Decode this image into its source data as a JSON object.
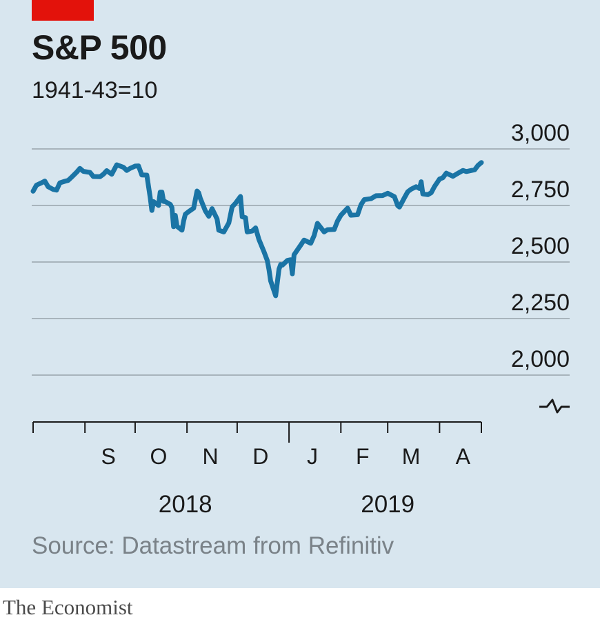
{
  "header": {
    "title": "S&P 500",
    "subtitle": "1941-43=10"
  },
  "footer": {
    "source": "Source: Datastream from Refinitiv",
    "brand": "The Economist"
  },
  "colors": {
    "line": "#1a74a5",
    "accent": "#e3120b",
    "panel": "#d8e6ef",
    "grid": "#a8b4bc"
  },
  "chart_data": {
    "type": "line",
    "title": "S&P 500",
    "subtitle": "1941-43=10",
    "ylim": [
      2000,
      3000
    ],
    "yticks": [
      2000,
      2250,
      2500,
      2750,
      3000
    ],
    "ytick_labels": [
      "2,000",
      "2,250",
      "2,500",
      "2,750",
      "3,000"
    ],
    "axis_break": true,
    "grid": true,
    "xlim": [
      "2018-08-01",
      "2019-04-26"
    ],
    "month_labels": [
      {
        "label": "S",
        "date": "2018-09-15"
      },
      {
        "label": "O",
        "date": "2018-10-15"
      },
      {
        "label": "N",
        "date": "2018-11-15"
      },
      {
        "label": "D",
        "date": "2018-12-15"
      },
      {
        "label": "J",
        "date": "2019-01-15"
      },
      {
        "label": "F",
        "date": "2019-02-14"
      },
      {
        "label": "M",
        "date": "2019-03-15"
      },
      {
        "label": "A",
        "date": "2019-04-15"
      }
    ],
    "year_labels": [
      {
        "label": "2018",
        "date": "2018-10-31"
      },
      {
        "label": "2019",
        "date": "2019-03-01"
      }
    ],
    "series": [
      {
        "values": [
          [
            "2018-08-01",
            2813
          ],
          [
            "2018-08-03",
            2840
          ],
          [
            "2018-08-06",
            2850
          ],
          [
            "2018-08-08",
            2858
          ],
          [
            "2018-08-10",
            2833
          ],
          [
            "2018-08-13",
            2821
          ],
          [
            "2018-08-15",
            2818
          ],
          [
            "2018-08-17",
            2850
          ],
          [
            "2018-08-20",
            2857
          ],
          [
            "2018-08-22",
            2861
          ],
          [
            "2018-08-24",
            2875
          ],
          [
            "2018-08-27",
            2897
          ],
          [
            "2018-08-29",
            2914
          ],
          [
            "2018-08-31",
            2901
          ],
          [
            "2018-09-04",
            2896
          ],
          [
            "2018-09-06",
            2878
          ],
          [
            "2018-09-10",
            2877
          ],
          [
            "2018-09-12",
            2888
          ],
          [
            "2018-09-14",
            2904
          ],
          [
            "2018-09-17",
            2888
          ],
          [
            "2018-09-20",
            2930
          ],
          [
            "2018-09-24",
            2919
          ],
          [
            "2018-09-26",
            2905
          ],
          [
            "2018-09-28",
            2914
          ],
          [
            "2018-10-01",
            2924
          ],
          [
            "2018-10-03",
            2925
          ],
          [
            "2018-10-05",
            2885
          ],
          [
            "2018-10-08",
            2884
          ],
          [
            "2018-10-10",
            2785
          ],
          [
            "2018-10-11",
            2728
          ],
          [
            "2018-10-12",
            2767
          ],
          [
            "2018-10-15",
            2750
          ],
          [
            "2018-10-16",
            2809
          ],
          [
            "2018-10-17",
            2809
          ],
          [
            "2018-10-18",
            2768
          ],
          [
            "2018-10-19",
            2767
          ],
          [
            "2018-10-22",
            2755
          ],
          [
            "2018-10-23",
            2741
          ],
          [
            "2018-10-24",
            2656
          ],
          [
            "2018-10-25",
            2706
          ],
          [
            "2018-10-26",
            2658
          ],
          [
            "2018-10-29",
            2641
          ],
          [
            "2018-10-30",
            2682
          ],
          [
            "2018-10-31",
            2711
          ],
          [
            "2018-11-02",
            2723
          ],
          [
            "2018-11-05",
            2738
          ],
          [
            "2018-11-07",
            2814
          ],
          [
            "2018-11-08",
            2806
          ],
          [
            "2018-11-09",
            2781
          ],
          [
            "2018-11-12",
            2726
          ],
          [
            "2018-11-14",
            2702
          ],
          [
            "2018-11-16",
            2736
          ],
          [
            "2018-11-19",
            2690
          ],
          [
            "2018-11-20",
            2641
          ],
          [
            "2018-11-23",
            2633
          ],
          [
            "2018-11-26",
            2673
          ],
          [
            "2018-11-28",
            2744
          ],
          [
            "2018-11-30",
            2760
          ],
          [
            "2018-12-03",
            2790
          ],
          [
            "2018-12-04",
            2700
          ],
          [
            "2018-12-06",
            2696
          ],
          [
            "2018-12-07",
            2633
          ],
          [
            "2018-12-10",
            2637
          ],
          [
            "2018-12-12",
            2651
          ],
          [
            "2018-12-14",
            2600
          ],
          [
            "2018-12-17",
            2546
          ],
          [
            "2018-12-19",
            2506
          ],
          [
            "2018-12-20",
            2467
          ],
          [
            "2018-12-21",
            2417
          ],
          [
            "2018-12-24",
            2351
          ],
          [
            "2018-12-26",
            2468
          ],
          [
            "2018-12-27",
            2489
          ],
          [
            "2018-12-28",
            2486
          ],
          [
            "2018-12-31",
            2507
          ],
          [
            "2019-01-02",
            2510
          ],
          [
            "2019-01-03",
            2448
          ],
          [
            "2019-01-04",
            2532
          ],
          [
            "2019-01-08",
            2575
          ],
          [
            "2019-01-10",
            2597
          ],
          [
            "2019-01-14",
            2583
          ],
          [
            "2019-01-16",
            2617
          ],
          [
            "2019-01-18",
            2671
          ],
          [
            "2019-01-22",
            2633
          ],
          [
            "2019-01-24",
            2643
          ],
          [
            "2019-01-28",
            2644
          ],
          [
            "2019-01-30",
            2681
          ],
          [
            "2019-02-01",
            2707
          ],
          [
            "2019-02-05",
            2738
          ],
          [
            "2019-02-07",
            2707
          ],
          [
            "2019-02-11",
            2709
          ],
          [
            "2019-02-13",
            2753
          ],
          [
            "2019-02-15",
            2776
          ],
          [
            "2019-02-19",
            2780
          ],
          [
            "2019-02-22",
            2793
          ],
          [
            "2019-02-26",
            2794
          ],
          [
            "2019-03-01",
            2804
          ],
          [
            "2019-03-05",
            2789
          ],
          [
            "2019-03-07",
            2749
          ],
          [
            "2019-03-08",
            2743
          ],
          [
            "2019-03-11",
            2784
          ],
          [
            "2019-03-13",
            2811
          ],
          [
            "2019-03-15",
            2822
          ],
          [
            "2019-03-18",
            2833
          ],
          [
            "2019-03-20",
            2825
          ],
          [
            "2019-03-21",
            2855
          ],
          [
            "2019-03-22",
            2801
          ],
          [
            "2019-03-25",
            2798
          ],
          [
            "2019-03-27",
            2806
          ],
          [
            "2019-03-29",
            2834
          ],
          [
            "2019-04-01",
            2867
          ],
          [
            "2019-04-03",
            2873
          ],
          [
            "2019-04-05",
            2893
          ],
          [
            "2019-04-09",
            2879
          ],
          [
            "2019-04-11",
            2888
          ],
          [
            "2019-04-15",
            2905
          ],
          [
            "2019-04-17",
            2900
          ],
          [
            "2019-04-22",
            2908
          ],
          [
            "2019-04-24",
            2927
          ],
          [
            "2019-04-26",
            2940
          ]
        ]
      }
    ]
  }
}
